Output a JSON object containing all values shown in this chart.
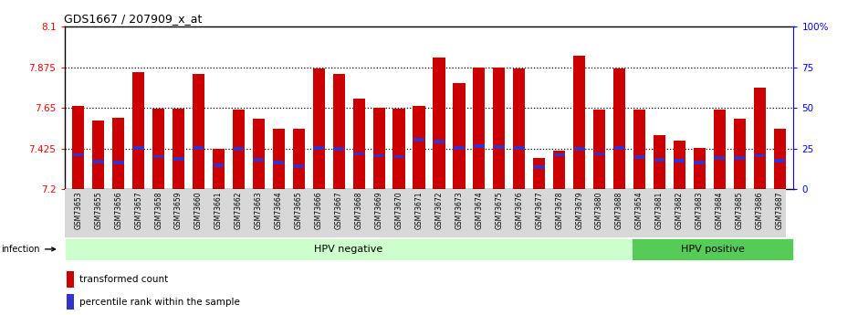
{
  "title": "GDS1667 / 207909_x_at",
  "samples": [
    "GSM73653",
    "GSM73655",
    "GSM73656",
    "GSM73657",
    "GSM73658",
    "GSM73659",
    "GSM73660",
    "GSM73661",
    "GSM73662",
    "GSM73663",
    "GSM73664",
    "GSM73665",
    "GSM73666",
    "GSM73667",
    "GSM73668",
    "GSM73669",
    "GSM73670",
    "GSM73671",
    "GSM73672",
    "GSM73673",
    "GSM73674",
    "GSM73675",
    "GSM73676",
    "GSM73677",
    "GSM73678",
    "GSM73679",
    "GSM73680",
    "GSM73688",
    "GSM73654",
    "GSM73681",
    "GSM73682",
    "GSM73683",
    "GSM73684",
    "GSM73685",
    "GSM73686",
    "GSM73687"
  ],
  "values": [
    7.66,
    7.58,
    7.595,
    7.85,
    7.648,
    7.648,
    7.84,
    7.425,
    7.64,
    7.59,
    7.535,
    7.535,
    7.87,
    7.84,
    7.7,
    7.65,
    7.648,
    7.66,
    7.93,
    7.79,
    7.875,
    7.875,
    7.87,
    7.37,
    7.415,
    7.94,
    7.64,
    7.87,
    7.64,
    7.5,
    7.47,
    7.43,
    7.64,
    7.59,
    7.76,
    7.535
  ],
  "percentile_values": [
    7.39,
    7.35,
    7.345,
    7.43,
    7.38,
    7.365,
    7.43,
    7.33,
    7.425,
    7.36,
    7.345,
    7.325,
    7.43,
    7.425,
    7.395,
    7.385,
    7.38,
    7.475,
    7.465,
    7.43,
    7.44,
    7.435,
    7.43,
    7.32,
    7.39,
    7.425,
    7.395,
    7.43,
    7.375,
    7.36,
    7.355,
    7.345,
    7.37,
    7.37,
    7.385,
    7.355
  ],
  "hpv_negative_count": 28,
  "ymin": 7.2,
  "ymax": 8.1,
  "yticks_left": [
    7.2,
    7.425,
    7.65,
    7.875,
    8.1
  ],
  "yticks_right": [
    0,
    25,
    50,
    75,
    100
  ],
  "bar_color": "#cc0000",
  "percentile_color": "#3333cc",
  "bar_width": 0.6,
  "bg_color": "#ffffff",
  "hpv_neg_color": "#ccffcc",
  "hpv_pos_color": "#55cc55",
  "legend_red_label": "transformed count",
  "legend_blue_label": "percentile rank within the sample",
  "infection_label": "infection",
  "hpv_neg_label": "HPV negative",
  "hpv_pos_label": "HPV positive"
}
